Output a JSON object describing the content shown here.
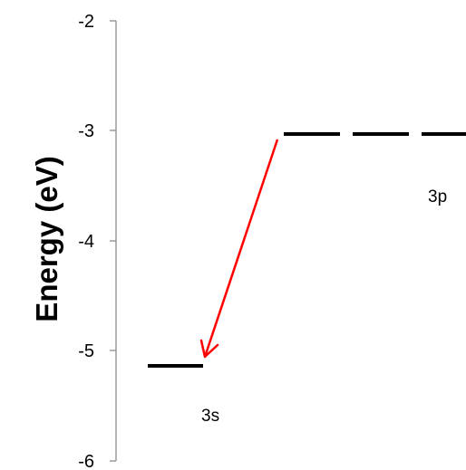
{
  "diagram": {
    "axis_title": "Energy (eV)",
    "y_ticks": [
      "-2",
      "-3",
      "-4",
      "-5",
      "-6"
    ],
    "levels": [
      {
        "label": "3s",
        "energy": -5.15,
        "style": "solid"
      },
      {
        "label": "3p",
        "energy": -3.04,
        "style": "dashed"
      }
    ],
    "transition": {
      "from": "3p",
      "to": "3s"
    },
    "colors": {
      "axis": "#8c8c8c",
      "level": "#000000",
      "arrow": "#ff0000"
    }
  }
}
